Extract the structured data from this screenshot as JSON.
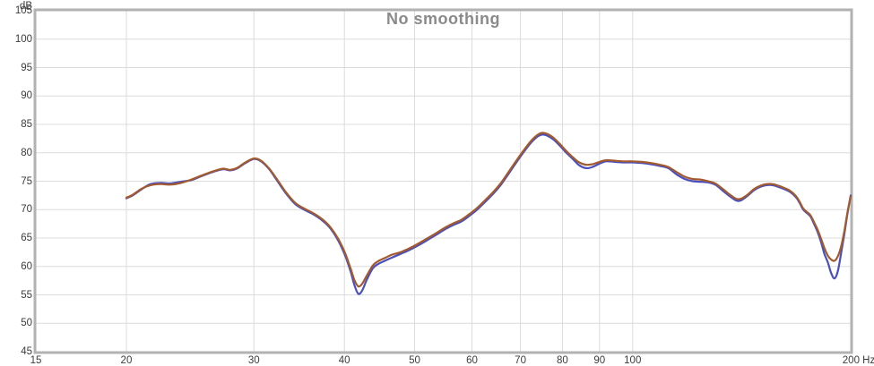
{
  "page": {
    "background": "#ffffff"
  },
  "header": {
    "title": "No smoothing"
  },
  "chart_data": {
    "type": "line",
    "title": "No smoothing",
    "legend": "none",
    "grid": true,
    "x_axis": {
      "scale": "log",
      "min": 15,
      "max": 200,
      "unit": "Hz",
      "ticks": [
        {
          "value": 15,
          "label": "15"
        },
        {
          "value": 20,
          "label": "20"
        },
        {
          "value": 30,
          "label": "30"
        },
        {
          "value": 40,
          "label": "40"
        },
        {
          "value": 50,
          "label": "50"
        },
        {
          "value": 60,
          "label": "60"
        },
        {
          "value": 70,
          "label": "70"
        },
        {
          "value": 80,
          "label": "80"
        },
        {
          "value": 90,
          "label": "90"
        },
        {
          "value": 100,
          "label": "100"
        },
        {
          "value": 200,
          "label": "200 Hz"
        }
      ]
    },
    "y_axis": {
      "min": 45,
      "max": 105,
      "unit": "dB",
      "tick_step": 5,
      "ticks": [
        105,
        100,
        95,
        90,
        85,
        80,
        75,
        70,
        65,
        60,
        55,
        50,
        45
      ]
    },
    "colors": {
      "border": "#b2b2b2",
      "grid": "#dcdcdc",
      "tick_text": "#3c3c3c",
      "title_text": "#8a8a8a",
      "series_orange": "#a35b2e",
      "series_blue": "#4a4fbe"
    },
    "series": [
      {
        "name": "blue-trace",
        "color": "#4a4fbe",
        "points": [
          [
            20,
            72.0
          ],
          [
            20.4,
            72.5
          ],
          [
            21,
            73.6
          ],
          [
            21.6,
            74.5
          ],
          [
            22.3,
            74.7
          ],
          [
            23,
            74.6
          ],
          [
            23.8,
            74.9
          ],
          [
            24.6,
            75.2
          ],
          [
            25.4,
            75.9
          ],
          [
            26.3,
            76.6
          ],
          [
            27.2,
            77.1
          ],
          [
            27.8,
            76.9
          ],
          [
            28.4,
            77.2
          ],
          [
            29.2,
            78.2
          ],
          [
            30,
            78.9
          ],
          [
            30.7,
            78.5
          ],
          [
            31.5,
            77.1
          ],
          [
            32.3,
            75.1
          ],
          [
            33.2,
            72.9
          ],
          [
            34.2,
            71.0
          ],
          [
            35.2,
            70.0
          ],
          [
            36.2,
            69.2
          ],
          [
            37.2,
            68.2
          ],
          [
            38.2,
            66.8
          ],
          [
            39.2,
            64.6
          ],
          [
            40.1,
            61.9
          ],
          [
            40.8,
            59.1
          ],
          [
            41.3,
            56.7
          ],
          [
            41.8,
            55.2
          ],
          [
            42.3,
            55.7
          ],
          [
            43,
            57.8
          ],
          [
            43.8,
            59.7
          ],
          [
            44.5,
            60.4
          ],
          [
            45.5,
            61.0
          ],
          [
            46.6,
            61.6
          ],
          [
            47.8,
            62.2
          ],
          [
            49,
            62.8
          ],
          [
            50.4,
            63.6
          ],
          [
            52,
            64.6
          ],
          [
            53.6,
            65.6
          ],
          [
            55.2,
            66.6
          ],
          [
            56.8,
            67.4
          ],
          [
            58,
            67.9
          ],
          [
            59.5,
            68.9
          ],
          [
            61,
            70.0
          ],
          [
            62.6,
            71.4
          ],
          [
            64.2,
            72.8
          ],
          [
            65.8,
            74.4
          ],
          [
            67.4,
            76.3
          ],
          [
            69,
            78.2
          ],
          [
            70.7,
            80.1
          ],
          [
            72.3,
            81.7
          ],
          [
            73.8,
            82.8
          ],
          [
            75,
            83.2
          ],
          [
            76.3,
            83.0
          ],
          [
            77.8,
            82.3
          ],
          [
            79.4,
            81.2
          ],
          [
            81,
            80.0
          ],
          [
            82.7,
            78.9
          ],
          [
            84.4,
            77.8
          ],
          [
            86.2,
            77.3
          ],
          [
            88,
            77.5
          ],
          [
            90,
            78.1
          ],
          [
            92,
            78.5
          ],
          [
            94.5,
            78.4
          ],
          [
            97,
            78.3
          ],
          [
            100,
            78.3
          ],
          [
            103,
            78.2
          ],
          [
            106,
            78.0
          ],
          [
            109,
            77.7
          ],
          [
            112,
            77.3
          ],
          [
            115,
            76.2
          ],
          [
            118,
            75.4
          ],
          [
            121,
            75.0
          ],
          [
            124,
            74.9
          ],
          [
            127,
            74.8
          ],
          [
            130,
            74.4
          ],
          [
            133,
            73.4
          ],
          [
            136,
            72.4
          ],
          [
            139,
            71.6
          ],
          [
            141,
            71.6
          ],
          [
            144,
            72.4
          ],
          [
            147,
            73.4
          ],
          [
            150,
            74.0
          ],
          [
            153,
            74.3
          ],
          [
            156,
            74.3
          ],
          [
            159,
            74.0
          ],
          [
            162,
            73.6
          ],
          [
            165,
            73.1
          ],
          [
            168,
            72.2
          ],
          [
            170,
            71.2
          ],
          [
            172,
            70.0
          ],
          [
            174,
            69.4
          ],
          [
            176,
            68.8
          ],
          [
            178,
            67.5
          ],
          [
            180,
            66.1
          ],
          [
            182,
            64.3
          ],
          [
            184,
            62.2
          ],
          [
            186,
            60.7
          ],
          [
            188,
            58.8
          ],
          [
            190,
            57.9
          ],
          [
            192,
            59.2
          ],
          [
            194,
            62.3
          ],
          [
            196,
            65.7
          ],
          [
            198,
            69.4
          ],
          [
            200,
            72.5
          ]
        ]
      },
      {
        "name": "orange-trace",
        "color": "#a35b2e",
        "points": [
          [
            20,
            72.1
          ],
          [
            20.4,
            72.6
          ],
          [
            21,
            73.7
          ],
          [
            21.6,
            74.3
          ],
          [
            22.3,
            74.5
          ],
          [
            23,
            74.4
          ],
          [
            23.8,
            74.7
          ],
          [
            24.6,
            75.3
          ],
          [
            25.4,
            76.0
          ],
          [
            26.3,
            76.7
          ],
          [
            27.2,
            77.2
          ],
          [
            27.8,
            77.0
          ],
          [
            28.4,
            77.3
          ],
          [
            29.2,
            78.3
          ],
          [
            30,
            79.0
          ],
          [
            30.7,
            78.6
          ],
          [
            31.5,
            77.2
          ],
          [
            32.3,
            75.3
          ],
          [
            33.2,
            73.1
          ],
          [
            34.2,
            71.2
          ],
          [
            35.2,
            70.2
          ],
          [
            36.2,
            69.4
          ],
          [
            37.2,
            68.4
          ],
          [
            38.2,
            67.0
          ],
          [
            39.2,
            64.9
          ],
          [
            40.1,
            62.3
          ],
          [
            40.8,
            59.6
          ],
          [
            41.3,
            57.6
          ],
          [
            41.8,
            56.5
          ],
          [
            42.3,
            56.9
          ],
          [
            43,
            58.5
          ],
          [
            43.8,
            60.2
          ],
          [
            44.5,
            60.9
          ],
          [
            45.5,
            61.5
          ],
          [
            46.6,
            62.1
          ],
          [
            47.8,
            62.5
          ],
          [
            49,
            63.1
          ],
          [
            50.4,
            63.9
          ],
          [
            52,
            64.9
          ],
          [
            53.6,
            65.9
          ],
          [
            55.2,
            66.9
          ],
          [
            56.8,
            67.7
          ],
          [
            58,
            68.2
          ],
          [
            59.5,
            69.2
          ],
          [
            61,
            70.3
          ],
          [
            62.6,
            71.7
          ],
          [
            64.2,
            73.1
          ],
          [
            65.8,
            74.7
          ],
          [
            67.4,
            76.6
          ],
          [
            69,
            78.5
          ],
          [
            70.7,
            80.4
          ],
          [
            72.3,
            82.0
          ],
          [
            73.8,
            83.1
          ],
          [
            75,
            83.5
          ],
          [
            76.3,
            83.3
          ],
          [
            77.8,
            82.6
          ],
          [
            79.4,
            81.5
          ],
          [
            81,
            80.3
          ],
          [
            82.7,
            79.2
          ],
          [
            84.4,
            78.3
          ],
          [
            86.2,
            77.9
          ],
          [
            88,
            78.0
          ],
          [
            90,
            78.4
          ],
          [
            92,
            78.7
          ],
          [
            94.5,
            78.6
          ],
          [
            97,
            78.5
          ],
          [
            100,
            78.5
          ],
          [
            103,
            78.4
          ],
          [
            106,
            78.2
          ],
          [
            109,
            77.9
          ],
          [
            112,
            77.5
          ],
          [
            115,
            76.6
          ],
          [
            118,
            75.8
          ],
          [
            121,
            75.4
          ],
          [
            124,
            75.3
          ],
          [
            127,
            75.0
          ],
          [
            130,
            74.6
          ],
          [
            133,
            73.7
          ],
          [
            136,
            72.7
          ],
          [
            139,
            71.9
          ],
          [
            141,
            71.9
          ],
          [
            144,
            72.6
          ],
          [
            147,
            73.6
          ],
          [
            150,
            74.2
          ],
          [
            153,
            74.5
          ],
          [
            156,
            74.5
          ],
          [
            159,
            74.2
          ],
          [
            162,
            73.8
          ],
          [
            165,
            73.3
          ],
          [
            168,
            72.4
          ],
          [
            170,
            71.4
          ],
          [
            172,
            70.2
          ],
          [
            174,
            69.6
          ],
          [
            176,
            69.0
          ],
          [
            178,
            67.8
          ],
          [
            180,
            66.5
          ],
          [
            182,
            64.9
          ],
          [
            184,
            63.2
          ],
          [
            186,
            61.9
          ],
          [
            188,
            61.2
          ],
          [
            190,
            61.0
          ],
          [
            192,
            61.8
          ],
          [
            194,
            63.5
          ],
          [
            196,
            66.2
          ],
          [
            198,
            69.6
          ],
          [
            200,
            72.3
          ]
        ]
      }
    ]
  }
}
